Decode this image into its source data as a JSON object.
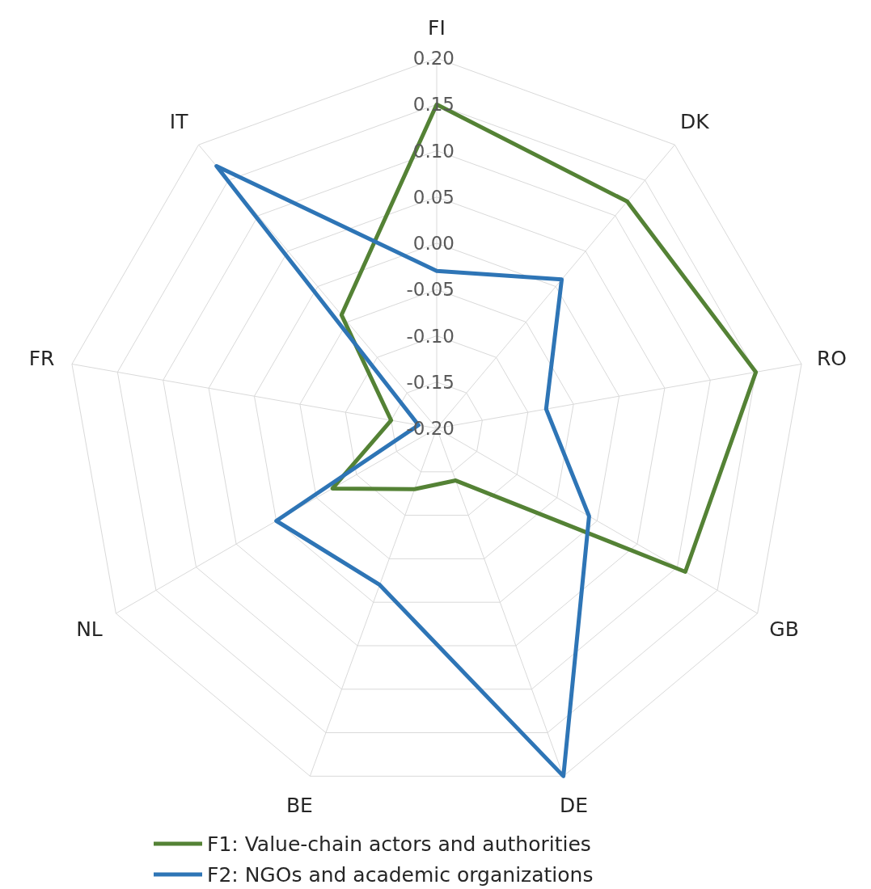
{
  "chart_data": {
    "type": "radar",
    "categories": [
      "FI",
      "DK",
      "RO",
      "GB",
      "DE",
      "BE",
      "NL",
      "FR",
      "IT"
    ],
    "series": [
      {
        "name": "F1: Value-chain actors and authorities",
        "color": "#548235",
        "values": [
          0.15,
          0.12,
          0.15,
          0.11,
          -0.14,
          -0.13,
          -0.07,
          -0.15,
          -0.04
        ]
      },
      {
        "name": "F2: NGOs and academic organizations",
        "color": "#2e75b6",
        "values": [
          -0.03,
          0.01,
          -0.08,
          -0.01,
          0.2,
          -0.02,
          0.0,
          -0.18,
          0.17
        ]
      }
    ],
    "ylim": [
      -0.2,
      0.2
    ],
    "yticks": [
      {
        "value": -0.2,
        "label": "-0.20"
      },
      {
        "value": -0.15,
        "label": "-0.15"
      },
      {
        "value": -0.1,
        "label": "-0.10"
      },
      {
        "value": -0.05,
        "label": "-0.05"
      },
      {
        "value": 0,
        "label": "0.00"
      },
      {
        "value": 0.05,
        "label": "0.05"
      },
      {
        "value": 0.1,
        "label": "0.10"
      },
      {
        "value": 0.15,
        "label": "0.15"
      },
      {
        "value": 0.2,
        "label": "0.20"
      }
    ],
    "grid": true,
    "legend": "bottom"
  }
}
